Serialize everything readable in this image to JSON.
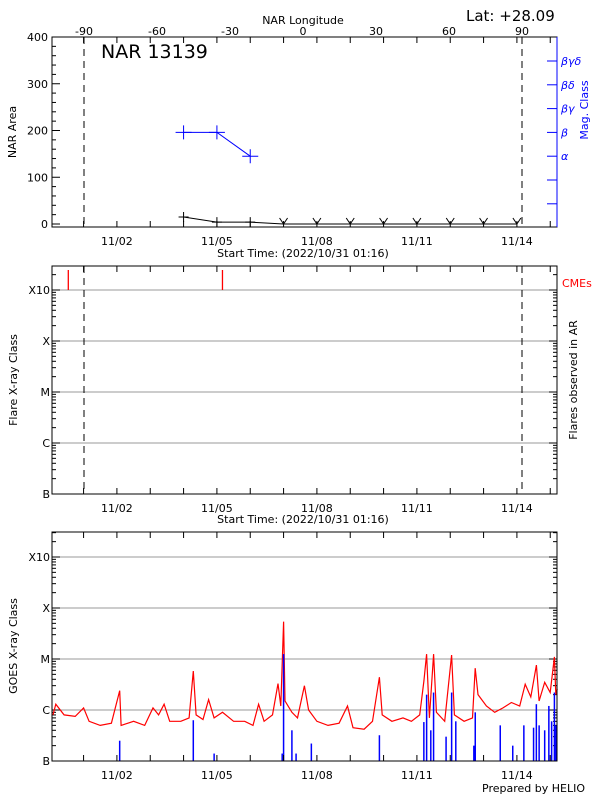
{
  "header": {
    "lat_label": "Lat: +28.09",
    "footer": "Prepared by HELIO"
  },
  "colors": {
    "area": "#000000",
    "mag_class": "#0000ff",
    "cme": "#ff0000",
    "goes_flux": "#ff0000",
    "flares": "#0000ff",
    "grid": "#999999"
  },
  "chart_data": [
    {
      "type": "line",
      "title": "NAR 13139",
      "xlabel": "Start Time: (2022/10/31 01:16)",
      "ylabel": "NAR Area",
      "y2label": "Mag. Class",
      "top_axis_label": "NAR Longitude",
      "ylim": [
        0,
        400
      ],
      "yticks": [
        "0",
        "100",
        "200",
        "300",
        "400"
      ],
      "top_ticks": [
        "-90",
        "-60",
        "-30",
        "0",
        "30",
        "60",
        "90"
      ],
      "xticks": [
        "11/02",
        "11/05",
        "11/08",
        "11/11",
        "11/14"
      ],
      "mag_classes": [
        "βγδ",
        "βδ",
        "βγ",
        "β",
        "α"
      ],
      "limb_longitudes": [
        -90,
        90
      ],
      "area_series": [
        [
          "11/04 00",
          15
        ],
        [
          "11/05 00",
          4
        ],
        [
          "11/06 00",
          4
        ],
        [
          "11/07 00",
          0
        ],
        [
          "11/08 00",
          0
        ],
        [
          "11/09 00",
          0
        ],
        [
          "11/10 00",
          0
        ],
        [
          "11/11 00",
          0
        ],
        [
          "11/12 00",
          0
        ],
        [
          "11/13 00",
          0
        ],
        [
          "11/14 00",
          0
        ]
      ],
      "mag_series": [
        [
          "11/04 00",
          "β"
        ],
        [
          "11/05 00",
          "β"
        ],
        [
          "11/06 00",
          "α"
        ]
      ]
    },
    {
      "type": "scatter",
      "xlabel": "Start Time: (2022/10/31 01:16)",
      "ylabel": "Flare X-ray Class",
      "y2label": "Flares observed in AR",
      "legend": "CMEs",
      "yticks": [
        "B",
        "C",
        "M",
        "X",
        "X10"
      ],
      "xticks": [
        "11/02",
        "11/05",
        "11/08",
        "11/11",
        "11/14"
      ],
      "cmes": [
        "10/31 13",
        "11/05 04"
      ],
      "flares": []
    },
    {
      "type": "line",
      "ylabel": "GOES X-ray Class",
      "yscale": "log",
      "yticks": [
        "B",
        "C",
        "M",
        "X",
        "X10"
      ],
      "xticks": [
        "11/02",
        "11/05",
        "11/08",
        "11/11",
        "11/14"
      ],
      "goes_flux": [
        [
          "10/31 02",
          8e-07
        ],
        [
          "10/31 04",
          1.3e-06
        ],
        [
          "10/31 10",
          8e-07
        ],
        [
          "10/31 18",
          7.5e-07
        ],
        [
          "11/01 00",
          1.1e-06
        ],
        [
          "11/01 04",
          6e-07
        ],
        [
          "11/01 12",
          5e-07
        ],
        [
          "11/01 20",
          5.5e-07
        ],
        [
          "11/02 02",
          2.4e-06
        ],
        [
          "11/02 03",
          5e-07
        ],
        [
          "11/02 12",
          6e-07
        ],
        [
          "11/02 20",
          5e-07
        ],
        [
          "11/03 02",
          1.1e-06
        ],
        [
          "11/03 06",
          8e-07
        ],
        [
          "11/03 10",
          1.3e-06
        ],
        [
          "11/03 14",
          6e-07
        ],
        [
          "11/03 22",
          6e-07
        ],
        [
          "11/04 04",
          7e-07
        ],
        [
          "11/04 07",
          5.8e-06
        ],
        [
          "11/04 09",
          8e-07
        ],
        [
          "11/04 14",
          6.5e-07
        ],
        [
          "11/04 18",
          1.6e-06
        ],
        [
          "11/04 22",
          7e-07
        ],
        [
          "11/05 04",
          9e-07
        ],
        [
          "11/05 12",
          6e-07
        ],
        [
          "11/05 20",
          6e-07
        ],
        [
          "11/06 02",
          5e-07
        ],
        [
          "11/06 06",
          1.3e-06
        ],
        [
          "11/06 10",
          6e-07
        ],
        [
          "11/06 16",
          8e-07
        ],
        [
          "11/06 20",
          3.3e-06
        ],
        [
          "11/06 22",
          1.2e-06
        ],
        [
          "11/07 00",
          5.4e-05
        ],
        [
          "11/07 01",
          1.5e-06
        ],
        [
          "11/07 06",
          9e-07
        ],
        [
          "11/07 10",
          7e-07
        ],
        [
          "11/07 15",
          3e-06
        ],
        [
          "11/07 18",
          1e-06
        ],
        [
          "11/08 00",
          6e-07
        ],
        [
          "11/08 08",
          5e-07
        ],
        [
          "11/08 16",
          5.5e-07
        ],
        [
          "11/08 22",
          1.2e-06
        ],
        [
          "11/09 02",
          4.5e-07
        ],
        [
          "11/09 10",
          4.2e-07
        ],
        [
          "11/09 16",
          6e-07
        ],
        [
          "11/09 21",
          4.4e-06
        ],
        [
          "11/09 23",
          8e-07
        ],
        [
          "11/10 06",
          6e-07
        ],
        [
          "11/10 14",
          7e-07
        ],
        [
          "11/10 20",
          6e-07
        ],
        [
          "11/11 02",
          8e-07
        ],
        [
          "11/11 05",
          3.7e-06
        ],
        [
          "11/11 07",
          1.25e-05
        ],
        [
          "11/11 09",
          7e-07
        ],
        [
          "11/11 12",
          1.25e-05
        ],
        [
          "11/11 14",
          9e-07
        ],
        [
          "11/11 20",
          6e-07
        ],
        [
          "11/12 01",
          1.2e-05
        ],
        [
          "11/12 03",
          8e-07
        ],
        [
          "11/12 10",
          6e-07
        ],
        [
          "11/12 16",
          7e-07
        ],
        [
          "11/12 18",
          6.6e-06
        ],
        [
          "11/12 20",
          2e-06
        ],
        [
          "11/13 02",
          1.2e-06
        ],
        [
          "11/13 08",
          9e-07
        ],
        [
          "11/13 14",
          1.1e-06
        ],
        [
          "11/13 20",
          1.4e-06
        ],
        [
          "11/14 02",
          1.2e-06
        ],
        [
          "11/14 06",
          3.2e-06
        ],
        [
          "11/14 10",
          1.8e-06
        ],
        [
          "11/14 14",
          7.6e-06
        ],
        [
          "11/14 16",
          1.5e-06
        ],
        [
          "11/14 20",
          3.5e-06
        ],
        [
          "11/15 00",
          2.2e-06
        ],
        [
          "11/15 03",
          1.1e-05
        ],
        [
          "11/15 04",
          2e-06
        ],
        [
          "11/15 05",
          2.6e-06
        ]
      ],
      "flares": [
        [
          "11/02 02",
          2.5e-07
        ],
        [
          "11/04 07",
          6.3e-07
        ],
        [
          "11/04 22",
          1.4e-07
        ],
        [
          "11/06 23",
          1.4e-07
        ],
        [
          "11/07 06",
          4e-07
        ],
        [
          "11/07 00",
          1.25e-05
        ],
        [
          "11/07 09",
          1.4e-07
        ],
        [
          "11/07 20",
          2.2e-07
        ],
        [
          "11/09 21",
          3.2e-07
        ],
        [
          "11/11 05",
          5.8e-07
        ],
        [
          "11/11 07",
          2e-06
        ],
        [
          "11/11 10",
          4e-07
        ],
        [
          "11/11 12",
          2.2e-06
        ],
        [
          "11/11 21",
          3e-07
        ],
        [
          "11/12 01",
          2.2e-06
        ],
        [
          "11/12 04",
          6e-07
        ],
        [
          "11/12 17",
          2e-07
        ],
        [
          "11/12 18",
          9e-07
        ],
        [
          "11/13 12",
          5e-07
        ],
        [
          "11/13 21",
          2e-07
        ],
        [
          "11/14 05",
          5e-07
        ],
        [
          "11/14 12",
          4.5e-07
        ],
        [
          "11/14 14",
          1.3e-06
        ],
        [
          "11/14 16",
          5e-07
        ],
        [
          "11/14 20",
          4e-07
        ],
        [
          "11/14 23",
          1.2e-06
        ],
        [
          "11/15 01",
          6e-07
        ],
        [
          "11/15 03",
          2.2e-06
        ],
        [
          "11/15 04",
          5e-07
        ]
      ]
    }
  ]
}
